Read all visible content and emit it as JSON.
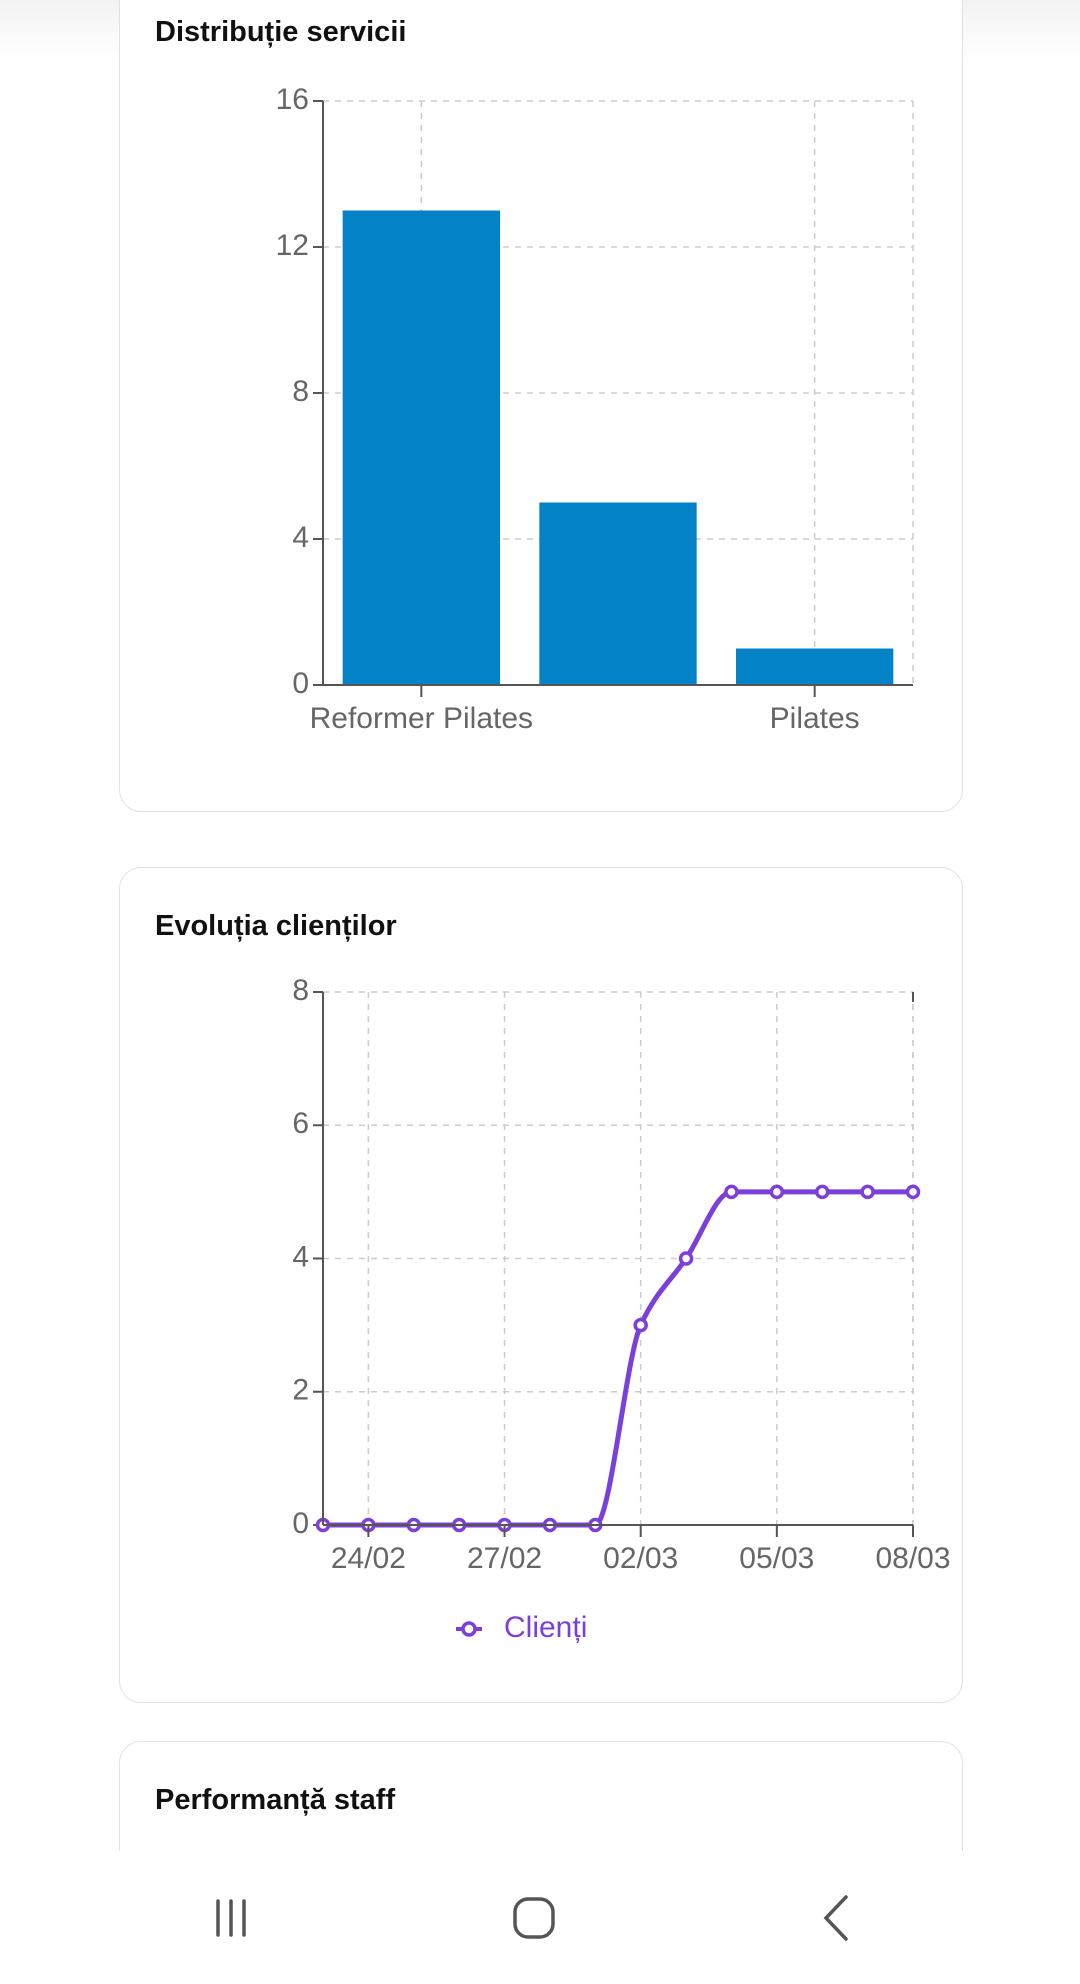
{
  "chart_data": [
    {
      "type": "bar",
      "title": "Distribuție servicii",
      "categories": [
        "Reformer Pilates",
        null,
        "Pilates"
      ],
      "values": [
        13,
        5,
        1
      ],
      "color": "#0382c8",
      "ylim": [
        0,
        16
      ],
      "yticks": [
        0,
        4,
        8,
        12,
        16
      ],
      "grid": true
    },
    {
      "type": "line",
      "title": "Evoluția clienților",
      "categories": [
        null,
        "24/02",
        null,
        null,
        "27/02",
        null,
        null,
        "02/03",
        null,
        null,
        "05/03",
        null,
        null,
        "08/03"
      ],
      "series": [
        {
          "name": "Clienți",
          "color": "#7b3fdc",
          "values": [
            0,
            0,
            0,
            0,
            0,
            0,
            0,
            3,
            4,
            5,
            5,
            5,
            5,
            5
          ]
        }
      ],
      "ylim": [
        0,
        8
      ],
      "yticks": [
        0,
        2,
        4,
        6,
        8
      ],
      "grid": true
    }
  ],
  "staff_card": {
    "title": "Performanță staff"
  }
}
